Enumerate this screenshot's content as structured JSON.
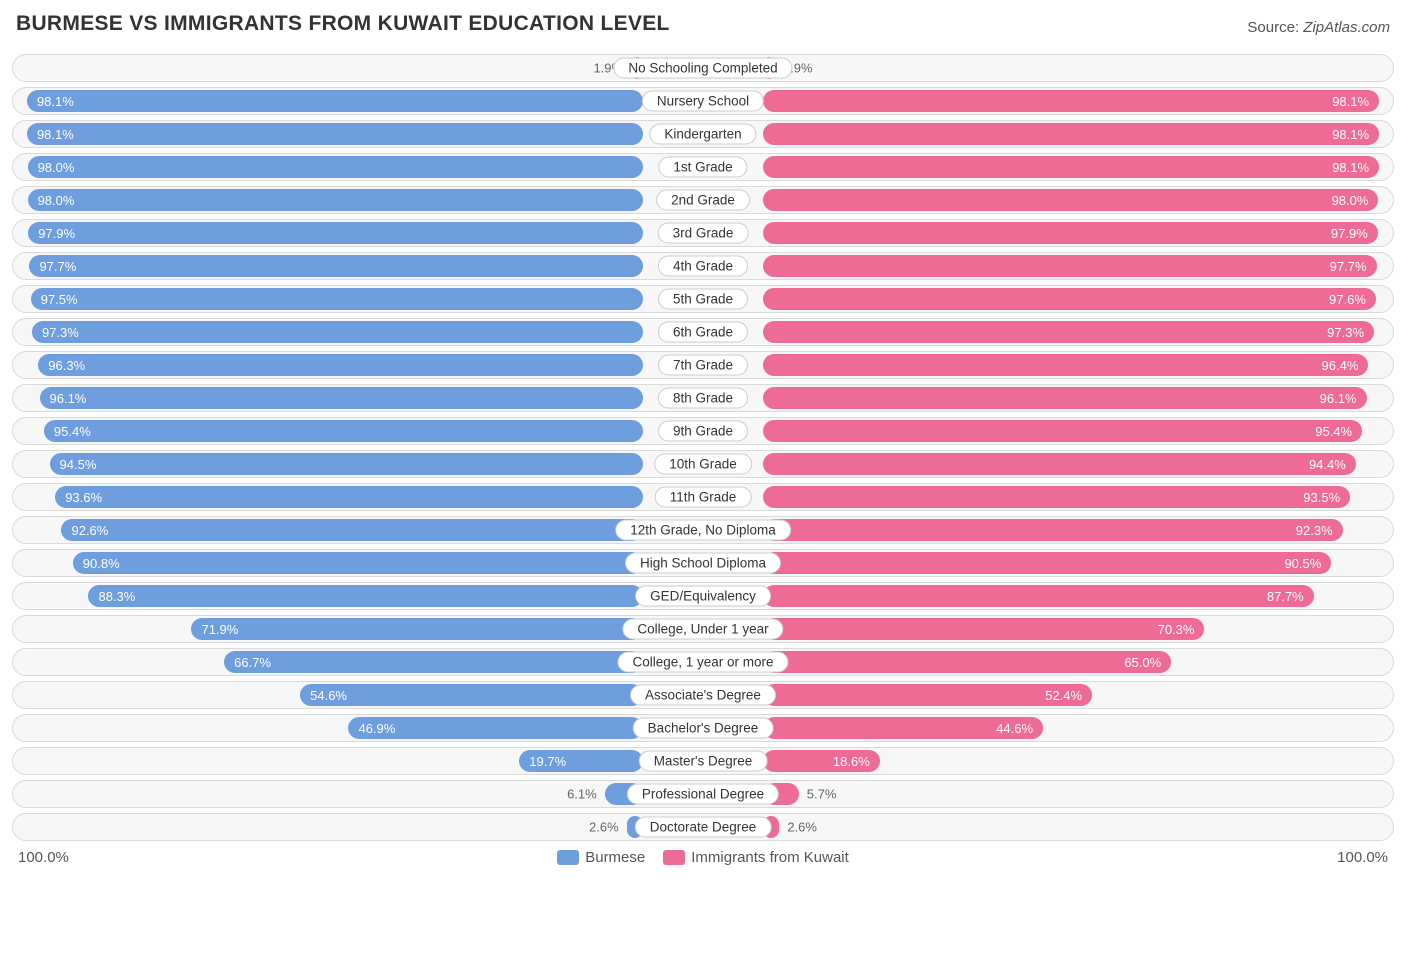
{
  "title": "BURMESE VS IMMIGRANTS FROM KUWAIT EDUCATION LEVEL",
  "source_label": "Source:",
  "source_value": "ZipAtlas.com",
  "colors": {
    "left_bar": "#6e9ede",
    "right_bar": "#ed6b94",
    "track_bg": "#f7f7f7",
    "track_border": "#d9d9d9",
    "text_inside": "#ffffff",
    "text_outside": "#666666",
    "label_border": "#cccccc",
    "title_color": "#333333"
  },
  "axis": {
    "left_max_label": "100.0%",
    "right_max_label": "100.0%",
    "max_value": 100.0
  },
  "legend": {
    "left": {
      "label": "Burmese",
      "color": "#6e9ede"
    },
    "right": {
      "label": "Immigrants from Kuwait",
      "color": "#ed6b94"
    }
  },
  "label_inside_threshold_pct": 12.0,
  "rows": [
    {
      "category": "No Schooling Completed",
      "left": {
        "value": 1.9,
        "label": "1.9%"
      },
      "right": {
        "value": 1.9,
        "label": "1.9%"
      }
    },
    {
      "category": "Nursery School",
      "left": {
        "value": 98.1,
        "label": "98.1%"
      },
      "right": {
        "value": 98.1,
        "label": "98.1%"
      }
    },
    {
      "category": "Kindergarten",
      "left": {
        "value": 98.1,
        "label": "98.1%"
      },
      "right": {
        "value": 98.1,
        "label": "98.1%"
      }
    },
    {
      "category": "1st Grade",
      "left": {
        "value": 98.0,
        "label": "98.0%"
      },
      "right": {
        "value": 98.1,
        "label": "98.1%"
      }
    },
    {
      "category": "2nd Grade",
      "left": {
        "value": 98.0,
        "label": "98.0%"
      },
      "right": {
        "value": 98.0,
        "label": "98.0%"
      }
    },
    {
      "category": "3rd Grade",
      "left": {
        "value": 97.9,
        "label": "97.9%"
      },
      "right": {
        "value": 97.9,
        "label": "97.9%"
      }
    },
    {
      "category": "4th Grade",
      "left": {
        "value": 97.7,
        "label": "97.7%"
      },
      "right": {
        "value": 97.7,
        "label": "97.7%"
      }
    },
    {
      "category": "5th Grade",
      "left": {
        "value": 97.5,
        "label": "97.5%"
      },
      "right": {
        "value": 97.6,
        "label": "97.6%"
      }
    },
    {
      "category": "6th Grade",
      "left": {
        "value": 97.3,
        "label": "97.3%"
      },
      "right": {
        "value": 97.3,
        "label": "97.3%"
      }
    },
    {
      "category": "7th Grade",
      "left": {
        "value": 96.3,
        "label": "96.3%"
      },
      "right": {
        "value": 96.4,
        "label": "96.4%"
      }
    },
    {
      "category": "8th Grade",
      "left": {
        "value": 96.1,
        "label": "96.1%"
      },
      "right": {
        "value": 96.1,
        "label": "96.1%"
      }
    },
    {
      "category": "9th Grade",
      "left": {
        "value": 95.4,
        "label": "95.4%"
      },
      "right": {
        "value": 95.4,
        "label": "95.4%"
      }
    },
    {
      "category": "10th Grade",
      "left": {
        "value": 94.5,
        "label": "94.5%"
      },
      "right": {
        "value": 94.4,
        "label": "94.4%"
      }
    },
    {
      "category": "11th Grade",
      "left": {
        "value": 93.6,
        "label": "93.6%"
      },
      "right": {
        "value": 93.5,
        "label": "93.5%"
      }
    },
    {
      "category": "12th Grade, No Diploma",
      "left": {
        "value": 92.6,
        "label": "92.6%"
      },
      "right": {
        "value": 92.3,
        "label": "92.3%"
      }
    },
    {
      "category": "High School Diploma",
      "left": {
        "value": 90.8,
        "label": "90.8%"
      },
      "right": {
        "value": 90.5,
        "label": "90.5%"
      }
    },
    {
      "category": "GED/Equivalency",
      "left": {
        "value": 88.3,
        "label": "88.3%"
      },
      "right": {
        "value": 87.7,
        "label": "87.7%"
      }
    },
    {
      "category": "College, Under 1 year",
      "left": {
        "value": 71.9,
        "label": "71.9%"
      },
      "right": {
        "value": 70.3,
        "label": "70.3%"
      }
    },
    {
      "category": "College, 1 year or more",
      "left": {
        "value": 66.7,
        "label": "66.7%"
      },
      "right": {
        "value": 65.0,
        "label": "65.0%"
      }
    },
    {
      "category": "Associate's Degree",
      "left": {
        "value": 54.6,
        "label": "54.6%"
      },
      "right": {
        "value": 52.4,
        "label": "52.4%"
      }
    },
    {
      "category": "Bachelor's Degree",
      "left": {
        "value": 46.9,
        "label": "46.9%"
      },
      "right": {
        "value": 44.6,
        "label": "44.6%"
      }
    },
    {
      "category": "Master's Degree",
      "left": {
        "value": 19.7,
        "label": "19.7%"
      },
      "right": {
        "value": 18.6,
        "label": "18.6%"
      }
    },
    {
      "category": "Professional Degree",
      "left": {
        "value": 6.1,
        "label": "6.1%"
      },
      "right": {
        "value": 5.7,
        "label": "5.7%"
      }
    },
    {
      "category": "Doctorate Degree",
      "left": {
        "value": 2.6,
        "label": "2.6%"
      },
      "right": {
        "value": 2.6,
        "label": "2.6%"
      }
    }
  ]
}
